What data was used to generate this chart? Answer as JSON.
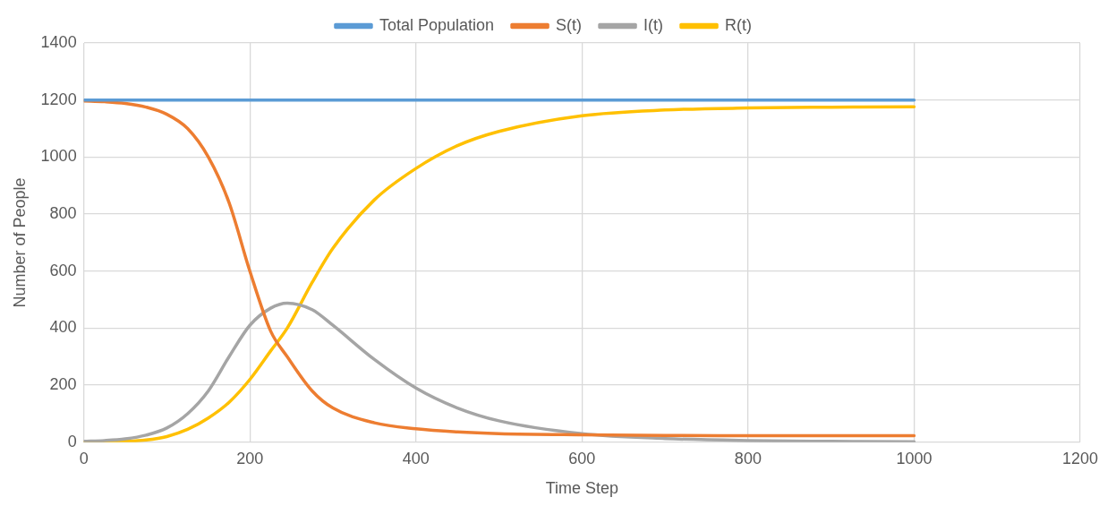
{
  "chart_data": {
    "type": "line",
    "xlabel": "Time Step",
    "ylabel": "Number of People",
    "x": [
      0,
      25,
      50,
      75,
      100,
      125,
      150,
      175,
      200,
      225,
      245,
      275,
      300,
      350,
      400,
      450,
      500,
      600,
      700,
      800,
      900,
      1000
    ],
    "series": [
      {
        "name": "Total Population",
        "color": "#5b9bd5",
        "values": [
          1200,
          1200,
          1200,
          1200,
          1200,
          1200,
          1200,
          1200,
          1200,
          1200,
          1200,
          1200,
          1200,
          1200,
          1200,
          1200,
          1200,
          1200,
          1200,
          1200,
          1200,
          1200
        ]
      },
      {
        "name": "S(t)",
        "color": "#ed7d31",
        "values": [
          1197,
          1194,
          1188,
          1175,
          1150,
          1100,
          1000,
          840,
          600,
          390,
          300,
          180,
          120,
          68,
          47,
          36,
          30,
          26,
          24,
          23,
          23,
          23
        ]
      },
      {
        "name": "I(t)",
        "color": "#a5a5a5",
        "values": [
          3,
          6,
          12,
          25,
          50,
          100,
          180,
          300,
          410,
          470,
          488,
          465,
          410,
          290,
          190,
          120,
          75,
          30,
          13,
          6,
          3,
          2
        ]
      },
      {
        "name": "R(t)",
        "color": "#ffc000",
        "values": [
          0,
          1,
          3,
          8,
          20,
          45,
          85,
          140,
          220,
          320,
          400,
          560,
          680,
          850,
          960,
          1040,
          1090,
          1145,
          1165,
          1172,
          1175,
          1176
        ]
      }
    ],
    "xlim": [
      0,
      1200
    ],
    "xticks": [
      0,
      200,
      400,
      600,
      800,
      1000,
      1200
    ],
    "ylim": [
      0,
      1400
    ],
    "yticks": [
      0,
      200,
      400,
      600,
      800,
      1000,
      1200,
      1400
    ],
    "grid": true,
    "legend": "top",
    "marker": "none",
    "line_style": "solid"
  }
}
